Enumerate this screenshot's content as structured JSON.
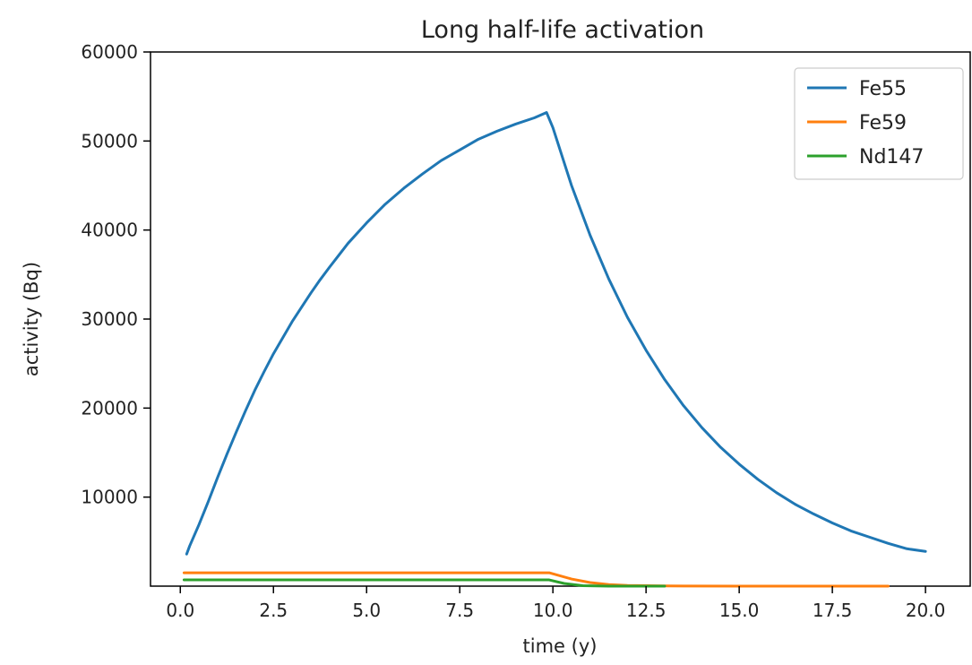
{
  "chart_data": {
    "type": "line",
    "title": "Long half-life activation",
    "xlabel": "time (y)",
    "ylabel": "activity (Bq)",
    "xlim": [
      -0.8,
      21.2
    ],
    "ylim": [
      0,
      60000
    ],
    "x_ticks": [
      0.0,
      2.5,
      5.0,
      7.5,
      10.0,
      12.5,
      15.0,
      17.5,
      20.0
    ],
    "x_tick_labels": [
      "0.0",
      "2.5",
      "5.0",
      "7.5",
      "10.0",
      "12.5",
      "15.0",
      "17.5",
      "20.0"
    ],
    "y_ticks": [
      10000,
      20000,
      30000,
      40000,
      50000,
      60000
    ],
    "y_tick_labels": [
      "10000",
      "20000",
      "30000",
      "40000",
      "50000",
      "60000"
    ],
    "grid": false,
    "legend_position": "top-right",
    "series": [
      {
        "name": "Fe55",
        "color": "#1f77b4",
        "x": [
          0.17,
          0.25,
          0.5,
          0.75,
          1.0,
          1.25,
          1.5,
          1.75,
          2.0,
          2.25,
          2.5,
          2.75,
          3.0,
          3.25,
          3.5,
          3.75,
          4.0,
          4.5,
          5.0,
          5.5,
          6.0,
          6.5,
          7.0,
          7.5,
          8.0,
          8.5,
          9.0,
          9.5,
          9.83,
          10.0,
          10.5,
          11.0,
          11.5,
          12.0,
          12.5,
          13.0,
          13.5,
          14.0,
          14.5,
          15.0,
          15.5,
          16.0,
          16.5,
          17.0,
          17.5,
          18.0,
          18.5,
          19.0,
          19.5,
          20.0
        ],
        "values": [
          3600,
          4500,
          6900,
          9500,
          12200,
          14800,
          17300,
          19700,
          22000,
          24100,
          26100,
          27900,
          29700,
          31300,
          32900,
          34400,
          35800,
          38500,
          40800,
          42900,
          44700,
          46300,
          47800,
          49000,
          50200,
          51100,
          51900,
          52600,
          53200,
          51500,
          45000,
          39400,
          34500,
          30200,
          26500,
          23200,
          20300,
          17800,
          15600,
          13700,
          12000,
          10500,
          9200,
          8100,
          7100,
          6200,
          5500,
          4800,
          4200,
          3900
        ]
      },
      {
        "name": "Fe59",
        "color": "#ff7f0e",
        "x": [
          0.1,
          0.5,
          1.0,
          2.0,
          3.0,
          4.0,
          5.0,
          6.0,
          7.0,
          8.0,
          9.0,
          9.9,
          10.5,
          11.0,
          11.5,
          12.0,
          13.0,
          15.0,
          17.0,
          19.0
        ],
        "values": [
          1500,
          1500,
          1500,
          1500,
          1500,
          1500,
          1500,
          1500,
          1500,
          1500,
          1500,
          1500,
          800,
          400,
          180,
          80,
          20,
          5,
          0,
          0
        ]
      },
      {
        "name": "Nd147",
        "color": "#2ca02c",
        "x": [
          0.1,
          0.5,
          1.0,
          2.0,
          3.0,
          4.0,
          5.0,
          6.0,
          7.0,
          8.0,
          9.0,
          9.9,
          10.3,
          10.8,
          11.5,
          13.0
        ],
        "values": [
          700,
          700,
          700,
          700,
          700,
          700,
          700,
          700,
          700,
          700,
          700,
          700,
          300,
          50,
          0,
          0
        ]
      }
    ]
  }
}
